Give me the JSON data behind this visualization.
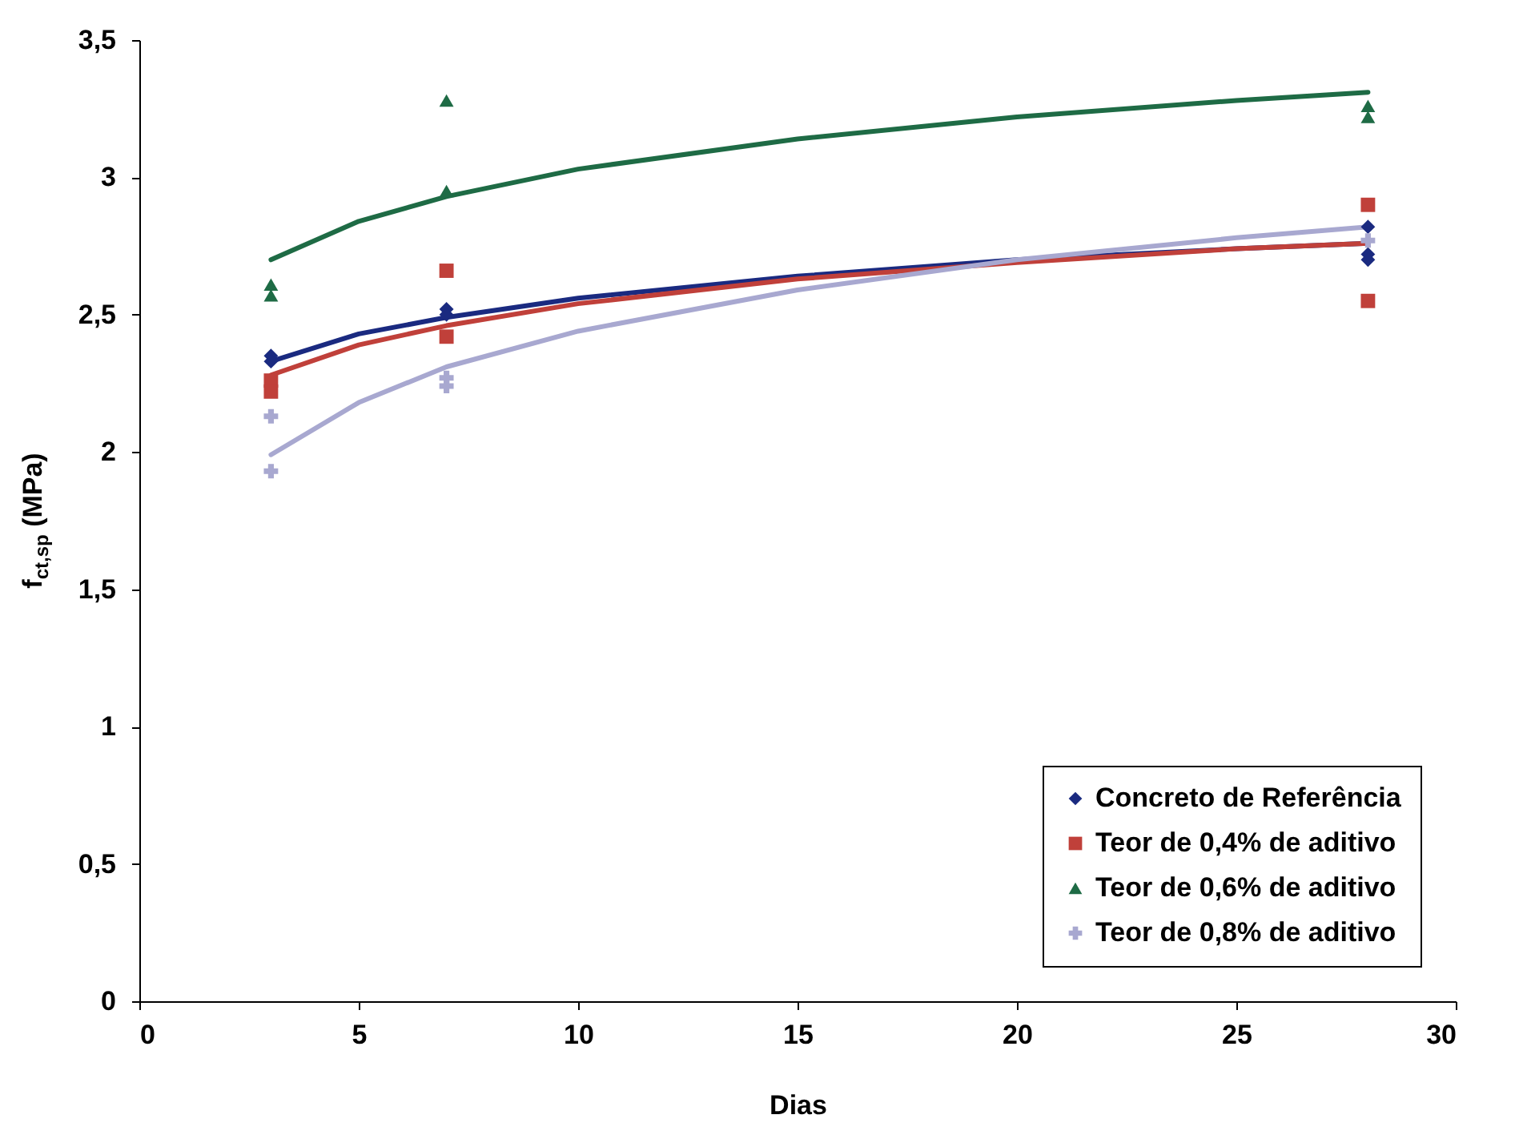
{
  "chart_data": {
    "type": "scatter",
    "xlabel": "Dias",
    "ylabel": "f$_{ct,sp}$ (MPa)",
    "xlim": [
      0,
      30
    ],
    "ylim": [
      0,
      3.5
    ],
    "xticks": [
      0,
      5,
      10,
      15,
      20,
      25,
      30
    ],
    "yticks": [
      0,
      {
        "value": 0.5,
        "label": "0,5"
      },
      1,
      {
        "value": 1.5,
        "label": "1,5"
      },
      2,
      {
        "value": 2.5,
        "label": "2,5"
      },
      3,
      {
        "value": 3.5,
        "label": "3,5"
      }
    ],
    "grid": false,
    "legend": "bottom right",
    "series": [
      {
        "name": "Concreto de Referência",
        "color": "#1a2a80",
        "marker": "diamond",
        "x": [
          3,
          3,
          7,
          7,
          28,
          28,
          28
        ],
        "values": [
          2.35,
          2.33,
          2.52,
          2.5,
          2.82,
          2.72,
          2.7
        ]
      },
      {
        "name": "Teor de 0,4% de aditivo",
        "color": "#c0403a",
        "marker": "square",
        "x": [
          3,
          3,
          7,
          7,
          28,
          28
        ],
        "values": [
          2.26,
          2.22,
          2.66,
          2.42,
          2.9,
          2.55
        ]
      },
      {
        "name": "Teor de 0,6% de aditivo",
        "color": "#1e6b45",
        "marker": "triangle",
        "x": [
          3,
          3,
          7,
          7,
          28,
          28
        ],
        "values": [
          2.61,
          2.57,
          3.28,
          2.95,
          3.26,
          3.22
        ]
      },
      {
        "name": "Teor de 0,8% de aditivo",
        "color": "#a8a8d0",
        "marker": "cross",
        "x": [
          3,
          3,
          7,
          7,
          28
        ],
        "values": [
          2.13,
          1.93,
          2.27,
          2.24,
          2.77
        ]
      },
      {
        "type": "line",
        "color": "#1a2a80",
        "x": [
          3,
          5,
          7,
          10,
          15,
          20,
          25,
          28
        ],
        "values": [
          2.33,
          2.43,
          2.49,
          2.56,
          2.64,
          2.7,
          2.74,
          2.76
        ]
      },
      {
        "type": "line",
        "color": "#c0403a",
        "x": [
          3,
          5,
          7,
          10,
          15,
          20,
          25,
          28
        ],
        "values": [
          2.28,
          2.39,
          2.46,
          2.54,
          2.63,
          2.69,
          2.74,
          2.76
        ]
      },
      {
        "type": "line",
        "color": "#1e6b45",
        "x": [
          3,
          5,
          7,
          10,
          15,
          20,
          25,
          28
        ],
        "values": [
          2.7,
          2.84,
          2.93,
          3.03,
          3.14,
          3.22,
          3.28,
          3.31
        ]
      },
      {
        "type": "line",
        "color": "#a8a8d0",
        "x": [
          3,
          5,
          7,
          10,
          15,
          20,
          25,
          28
        ],
        "values": [
          1.99,
          2.18,
          2.31,
          2.44,
          2.59,
          2.7,
          2.78,
          2.82
        ]
      }
    ]
  }
}
